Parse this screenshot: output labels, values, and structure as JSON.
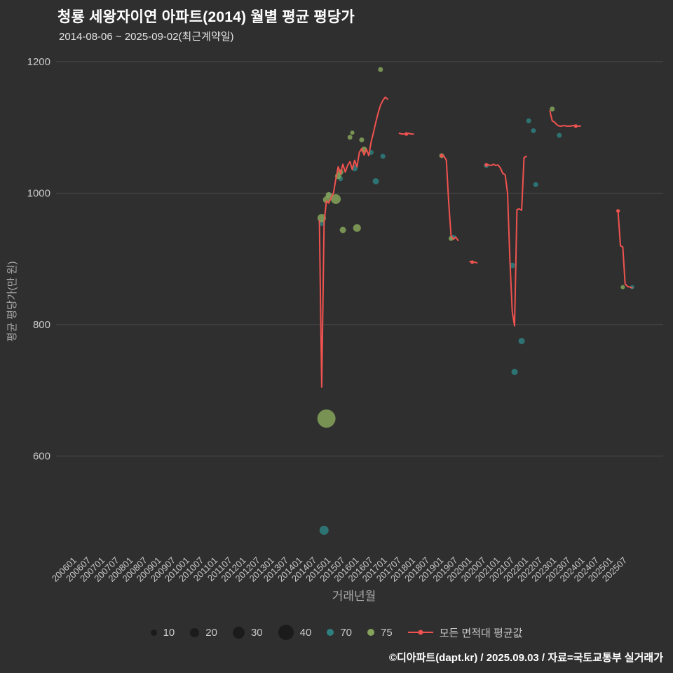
{
  "header": {
    "title": "청룡 세왕자이연 아파트(2014) 월별 평균 평당가",
    "subtitle": "2014-08-06 ~ 2025-09-02(최근계약일)"
  },
  "footer": {
    "credit": "©디아파트(dapt.kr) / 2025.09.03 / 자료=국토교통부 실거래가"
  },
  "chart_data": {
    "type": "scatter",
    "title": "청룡 세왕자이연 아파트(2014) 월별 평균 평당가",
    "subtitle": "2014-08-06 ~ 2025-09-02(최근계약일)",
    "xlabel": "거래년월",
    "ylabel": "평균 평당가(만 원)",
    "ylim": [
      450,
      1210
    ],
    "yticks": [
      600,
      800,
      1000,
      1200
    ],
    "grid": true,
    "legend_position": "bottom",
    "xticks": [
      "200601",
      "200607",
      "200701",
      "200707",
      "200801",
      "200807",
      "200901",
      "200907",
      "201001",
      "201007",
      "201101",
      "201107",
      "201201",
      "201207",
      "201301",
      "201307",
      "201401",
      "201407",
      "201501",
      "201507",
      "201601",
      "201607",
      "201701",
      "201707",
      "201801",
      "201807",
      "201901",
      "201907",
      "202001",
      "202007",
      "202101",
      "202107",
      "202201",
      "202207",
      "202301",
      "202307",
      "202401",
      "202407",
      "202501",
      "202507"
    ],
    "colors": {
      "background": "#2f2f2f",
      "grid": "#4d4d4d",
      "tick": "#c9c9c9",
      "axis": "#a9a9a9"
    },
    "legend": {
      "sizes": [
        10,
        20,
        30,
        40
      ]
    },
    "series": [
      {
        "name": "70",
        "type": "scatter",
        "color": "#2e7f7f",
        "points": [
          [
            "201409",
            955,
            9
          ],
          [
            "201410",
            487,
            13
          ],
          [
            "201412",
            996,
            7
          ],
          [
            "201505",
            1022,
            7
          ],
          [
            "201511",
            1038,
            9
          ],
          [
            "201606",
            1062,
            7
          ],
          [
            "201608",
            1018,
            9
          ],
          [
            "201611",
            1056,
            7
          ],
          [
            "201905",
            933,
            7
          ],
          [
            "202007",
            1042,
            7
          ],
          [
            "202106",
            890,
            8
          ],
          [
            "202107",
            728,
            9
          ],
          [
            "202110",
            775,
            9
          ],
          [
            "202201",
            1110,
            7
          ],
          [
            "202203",
            1095,
            7
          ],
          [
            "202204",
            1013,
            7
          ],
          [
            "202302",
            1088,
            7
          ],
          [
            "202509",
            857,
            6
          ]
        ]
      },
      {
        "name": "75",
        "type": "scatter",
        "color": "#85a35b",
        "points": [
          [
            "201409",
            962,
            12
          ],
          [
            "201411",
            657,
            26
          ],
          [
            "201411",
            990,
            10
          ],
          [
            "201412",
            997,
            9
          ],
          [
            "201503",
            991,
            14
          ],
          [
            "201504",
            1026,
            9
          ],
          [
            "201505",
            1032,
            8
          ],
          [
            "201506",
            944,
            9
          ],
          [
            "201509",
            1085,
            7
          ],
          [
            "201510",
            1092,
            6
          ],
          [
            "201512",
            947,
            11
          ],
          [
            "201602",
            1081,
            7
          ],
          [
            "201603",
            1066,
            9
          ],
          [
            "201610",
            1188,
            7
          ],
          [
            "201812",
            1057,
            7
          ],
          [
            "201904",
            931,
            7
          ],
          [
            "202211",
            1128,
            7
          ],
          [
            "202505",
            857,
            6
          ]
        ]
      },
      {
        "name": "모든 면적대 평균값",
        "type": "line",
        "color": "#f0524f",
        "width": 2,
        "segments": [
          [
            [
              "201408",
              958
            ],
            [
              "201409",
              705
            ],
            [
              "201410",
              955
            ],
            [
              "201411",
              988
            ],
            [
              "201412",
              985
            ],
            [
              "201501",
              993
            ],
            [
              "201502",
              1000
            ],
            [
              "201503",
              1022
            ],
            [
              "201504",
              1040
            ],
            [
              "201505",
              1030
            ],
            [
              "201506",
              1044
            ],
            [
              "201507",
              1032
            ],
            [
              "201508",
              1042
            ],
            [
              "201509",
              1048
            ],
            [
              "201510",
              1036
            ],
            [
              "201511",
              1050
            ],
            [
              "201512",
              1040
            ],
            [
              "201601",
              1062
            ],
            [
              "201602",
              1068
            ],
            [
              "201603",
              1058
            ],
            [
              "201604",
              1067
            ],
            [
              "201605",
              1057
            ],
            [
              "201606",
              1078
            ],
            [
              "201607",
              1092
            ],
            [
              "201608",
              1108
            ],
            [
              "201609",
              1122
            ],
            [
              "201610",
              1134
            ],
            [
              "201611",
              1141
            ],
            [
              "201612",
              1146
            ],
            [
              "201701",
              1143
            ]
          ],
          [
            [
              "201706",
              1091
            ],
            [
              "201707",
              1090
            ],
            [
              "201708",
              1090
            ],
            [
              "201709",
              1090
            ],
            [
              "201710",
              1091
            ],
            [
              "201711",
              1090
            ],
            [
              "201712",
              1090
            ]
          ],
          [
            [
              "201812",
              1057
            ],
            [
              "201901",
              1056
            ],
            [
              "201902",
              1050
            ],
            [
              "201903",
              985
            ],
            [
              "201904",
              935
            ],
            [
              "201905",
              930
            ],
            [
              "201906",
              933
            ],
            [
              "201907",
              928
            ]
          ],
          [
            [
              "201912",
              896
            ],
            [
              "202001",
              895
            ],
            [
              "202002",
              895
            ],
            [
              "202003",
              894
            ]
          ],
          [
            [
              "202007",
              1043
            ],
            [
              "202008",
              1043
            ],
            [
              "202009",
              1042
            ],
            [
              "202010",
              1044
            ],
            [
              "202011",
              1042
            ],
            [
              "202012",
              1043
            ],
            [
              "202101",
              1038
            ],
            [
              "202102",
              1030
            ],
            [
              "202103",
              1028
            ],
            [
              "202104",
              1000
            ],
            [
              "202105",
              900
            ],
            [
              "202106",
              820
            ],
            [
              "202107",
              798
            ],
            [
              "202108",
              975
            ],
            [
              "202109",
              976
            ],
            [
              "202110",
              974
            ],
            [
              "202111",
              1054
            ],
            [
              "202112",
              1056
            ]
          ],
          [
            [
              "202210",
              1125
            ],
            [
              "202211",
              1110
            ],
            [
              "202212",
              1108
            ],
            [
              "202301",
              1104
            ],
            [
              "202302",
              1102
            ],
            [
              "202303",
              1102
            ],
            [
              "202304",
              1103
            ],
            [
              "202305",
              1102
            ],
            [
              "202306",
              1102
            ],
            [
              "202307",
              1102
            ],
            [
              "202308",
              1103
            ],
            [
              "202309",
              1102
            ],
            [
              "202310",
              1102
            ],
            [
              "202311",
              1102
            ]
          ],
          [
            [
              "202503",
              973
            ],
            [
              "202504",
              920
            ],
            [
              "202505",
              918
            ],
            [
              "202506",
              862
            ],
            [
              "202507",
              858
            ],
            [
              "202508",
              857
            ],
            [
              "202509",
              856
            ]
          ]
        ],
        "markers": [
          [
            "201709",
            1090
          ],
          [
            "201812",
            1057
          ],
          [
            "202001",
            895
          ],
          [
            "202007",
            1043
          ],
          [
            "202309",
            1102
          ],
          [
            "202503",
            973
          ]
        ]
      }
    ]
  }
}
